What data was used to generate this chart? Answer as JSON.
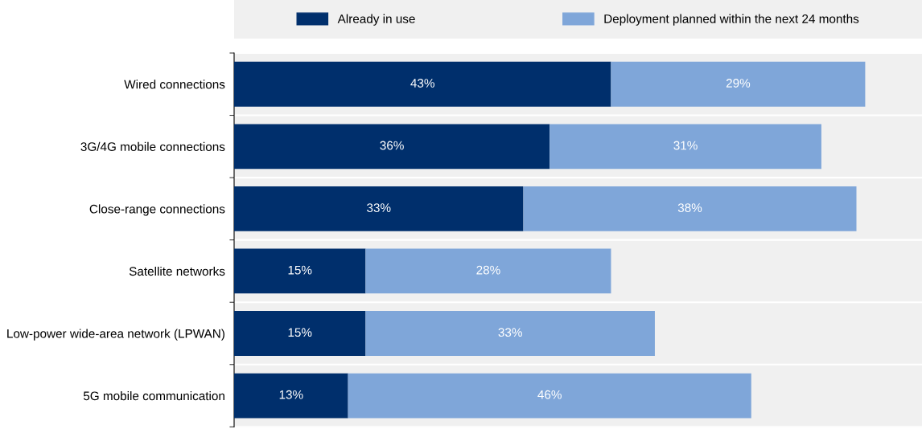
{
  "chart_data": {
    "type": "bar",
    "orientation": "horizontal",
    "stacked": true,
    "categories": [
      "Wired connections",
      "3G/4G mobile connections",
      "Close-range connections",
      "Satellite networks",
      "Low-power wide-area network (LPWAN)",
      "5G mobile communication"
    ],
    "series": [
      {
        "name": "Already in use",
        "color": "#002f6c",
        "values": [
          43,
          36,
          33,
          15,
          15,
          13
        ],
        "value_labels": [
          "43%",
          "36%",
          "33%",
          "15%",
          "15%",
          "13%"
        ]
      },
      {
        "name": "Deployment planned within the next 24 months",
        "color": "#7fa6d9",
        "values": [
          29,
          31,
          38,
          28,
          33,
          46
        ],
        "value_labels": [
          "29%",
          "31%",
          "38%",
          "28%",
          "33%",
          "46%"
        ]
      }
    ],
    "tick_labels": "y",
    "grid": "y",
    "legend": "top"
  }
}
